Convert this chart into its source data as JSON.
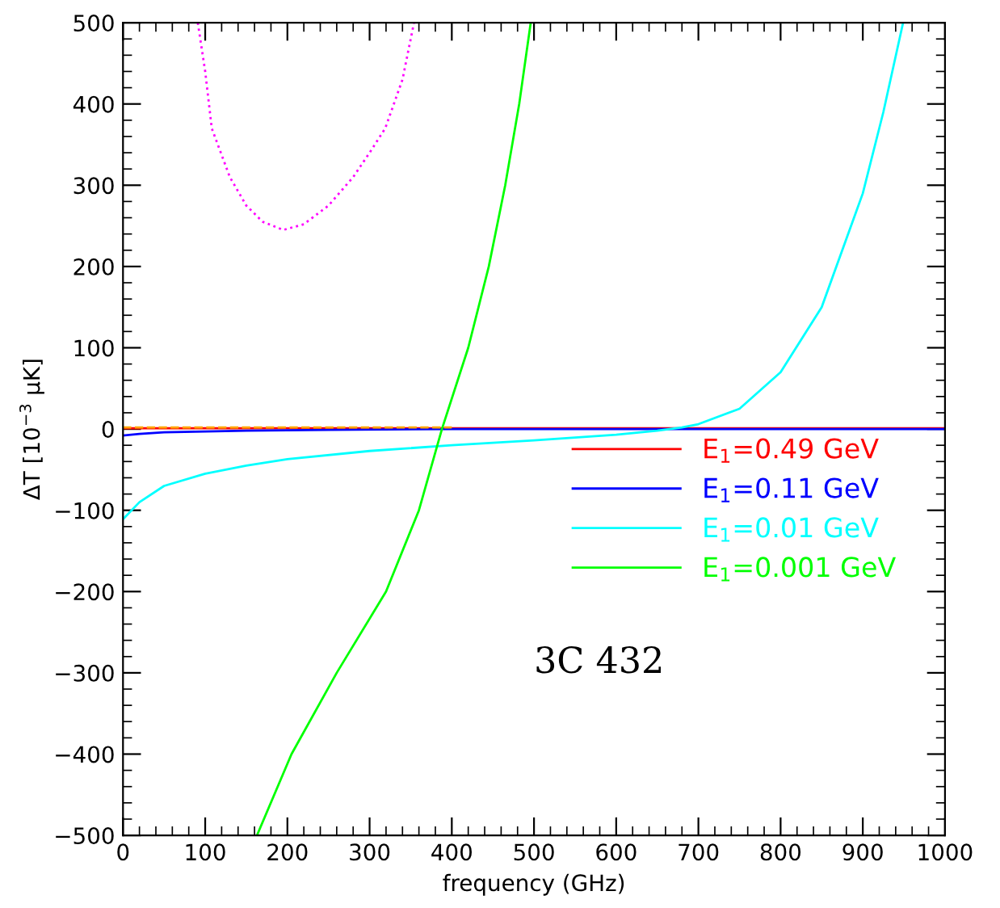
{
  "chart_data": {
    "type": "line",
    "xlabel": "frequency (GHz)",
    "ylabel": "ΔT [10$^{−3}$ μK]",
    "xlim": [
      0,
      1000
    ],
    "ylim": [
      -500,
      500
    ],
    "xticks": [
      0,
      100,
      200,
      300,
      400,
      500,
      600,
      700,
      800,
      900,
      1000
    ],
    "yticks": [
      -500,
      -400,
      -300,
      -200,
      -100,
      0,
      100,
      200,
      300,
      400,
      500
    ],
    "grid": false,
    "legend": "center right",
    "marker": "none",
    "annotations": [
      "3C 432"
    ],
    "series": [
      {
        "name": "E$_{1}$=0.49 GeV",
        "color": "#ff0000",
        "x": [
          0,
          1000
        ],
        "values": [
          1,
          1
        ]
      },
      {
        "name": "E$_{1}$=0.11 GeV",
        "color": "#0000ff",
        "x": [
          0,
          20,
          50,
          100,
          150,
          250,
          400,
          1000
        ],
        "values": [
          -8,
          -6,
          -4,
          -3,
          -2,
          -1,
          0,
          0
        ]
      },
      {
        "name": "E$_{1}$=0.01 GeV",
        "color": "#00ffff",
        "x": [
          0,
          20,
          50,
          100,
          150,
          200,
          300,
          400,
          500,
          600,
          650,
          680,
          700,
          750,
          800,
          850,
          900,
          925,
          949
        ],
        "values": [
          -111,
          -90,
          -70,
          -55,
          -45,
          -37,
          -27,
          -20,
          -14,
          -7,
          -2,
          2,
          6,
          25,
          70,
          150,
          290,
          390,
          500
        ]
      },
      {
        "name": "E$_{1}$=0.001 GeV",
        "color": "#00ff00",
        "x": [
          163,
          205,
          260,
          320,
          360,
          388,
          420,
          445,
          465,
          482,
          496
        ],
        "values": [
          -500,
          -400,
          -300,
          -200,
          -100,
          0,
          100,
          200,
          300,
          400,
          500
        ]
      },
      {
        "color": "#ff00ff",
        "line_style": "dotted",
        "x": [
          91,
          100,
          108,
          130,
          150,
          170,
          195,
          220,
          250,
          280,
          300,
          319,
          340,
          354
        ],
        "values": [
          500,
          440,
          370,
          310,
          275,
          255,
          245,
          252,
          275,
          310,
          340,
          370,
          430,
          500
        ]
      },
      {
        "color": "#ffa500",
        "line_style": "dashed",
        "x": [
          0,
          400
        ],
        "values": [
          2,
          2
        ]
      }
    ]
  }
}
